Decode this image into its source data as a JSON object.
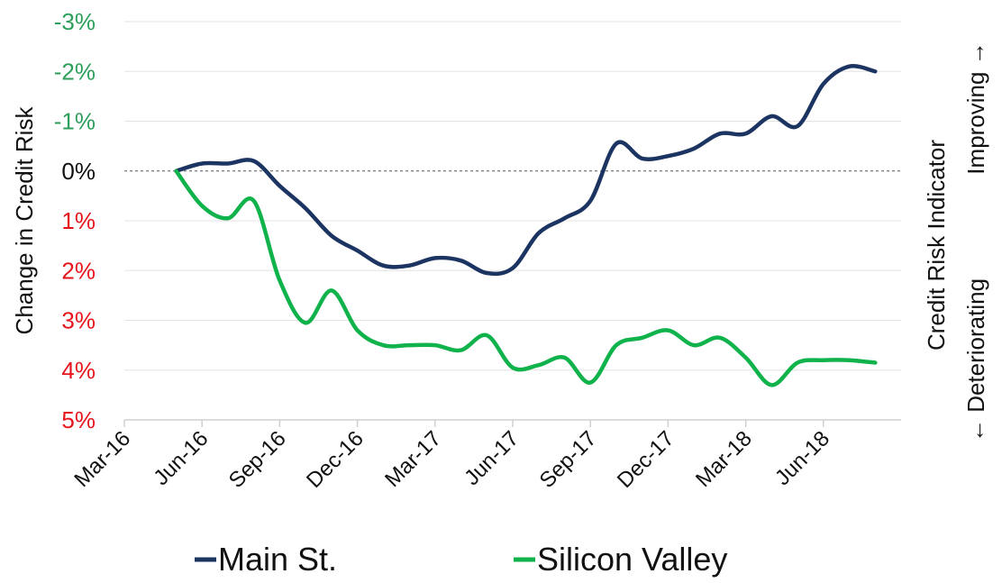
{
  "chart_data": {
    "type": "line",
    "ylabel": "Change in Credit Risk",
    "right_axis_title": "Credit Risk Indicator",
    "right_axis_improving": "Improving →",
    "right_axis_deteriorating": "← Deteriorating",
    "ylim": [
      5,
      -3
    ],
    "y_inverted": true,
    "y_ticks": [
      {
        "value": -3,
        "label": "-3%",
        "color": "#2e9e5b"
      },
      {
        "value": -2,
        "label": "-2%",
        "color": "#2e9e5b"
      },
      {
        "value": -1,
        "label": "-1%",
        "color": "#2e9e5b"
      },
      {
        "value": 0,
        "label": "0%",
        "color": "#111111"
      },
      {
        "value": 1,
        "label": "1%",
        "color": "#e8141c"
      },
      {
        "value": 2,
        "label": "2%",
        "color": "#e8141c"
      },
      {
        "value": 3,
        "label": "3%",
        "color": "#e8141c"
      },
      {
        "value": 4,
        "label": "4%",
        "color": "#e8141c"
      },
      {
        "value": 5,
        "label": "5%",
        "color": "#e8141c"
      }
    ],
    "x_ticks": [
      "Mar-16",
      "Jun-16",
      "Sep-16",
      "Dec-16",
      "Mar-17",
      "Jun-17",
      "Sep-17",
      "Dec-17",
      "Mar-18",
      "Jun-18"
    ],
    "x_range": [
      "2016-03",
      "2018-09"
    ],
    "grid": true,
    "zero_line": "dashed",
    "legend_position": "bottom",
    "series": [
      {
        "name": "Main St.",
        "color": "#1b3461",
        "points": [
          [
            "2016-05",
            0.0
          ],
          [
            "2016-06",
            -0.15
          ],
          [
            "2016-07",
            -0.15
          ],
          [
            "2016-08",
            -0.2
          ],
          [
            "2016-09",
            0.3
          ],
          [
            "2016-10",
            0.75
          ],
          [
            "2016-11",
            1.3
          ],
          [
            "2016-12",
            1.6
          ],
          [
            "2017-01",
            1.9
          ],
          [
            "2017-02",
            1.9
          ],
          [
            "2017-03",
            1.75
          ],
          [
            "2017-04",
            1.8
          ],
          [
            "2017-05",
            2.05
          ],
          [
            "2017-06",
            1.95
          ],
          [
            "2017-07",
            1.25
          ],
          [
            "2017-08",
            0.95
          ],
          [
            "2017-09",
            0.6
          ],
          [
            "2017-10",
            -0.55
          ],
          [
            "2017-11",
            -0.25
          ],
          [
            "2017-12",
            -0.3
          ],
          [
            "2018-01",
            -0.45
          ],
          [
            "2018-02",
            -0.75
          ],
          [
            "2018-03",
            -0.75
          ],
          [
            "2018-04",
            -1.1
          ],
          [
            "2018-05",
            -0.9
          ],
          [
            "2018-06",
            -1.75
          ],
          [
            "2018-07",
            -2.1
          ],
          [
            "2018-08",
            -2.0
          ]
        ]
      },
      {
        "name": "Silicon Valley",
        "color": "#10b24b",
        "points": [
          [
            "2016-05",
            0.0
          ],
          [
            "2016-06",
            0.7
          ],
          [
            "2016-07",
            0.95
          ],
          [
            "2016-08",
            0.6
          ],
          [
            "2016-09",
            2.2
          ],
          [
            "2016-10",
            3.05
          ],
          [
            "2016-11",
            2.4
          ],
          [
            "2016-12",
            3.2
          ],
          [
            "2017-01",
            3.5
          ],
          [
            "2017-02",
            3.5
          ],
          [
            "2017-03",
            3.5
          ],
          [
            "2017-04",
            3.6
          ],
          [
            "2017-05",
            3.3
          ],
          [
            "2017-06",
            3.95
          ],
          [
            "2017-07",
            3.9
          ],
          [
            "2017-08",
            3.75
          ],
          [
            "2017-09",
            4.25
          ],
          [
            "2017-10",
            3.5
          ],
          [
            "2017-11",
            3.35
          ],
          [
            "2017-12",
            3.2
          ],
          [
            "2018-01",
            3.5
          ],
          [
            "2018-02",
            3.35
          ],
          [
            "2018-03",
            3.75
          ],
          [
            "2018-04",
            4.3
          ],
          [
            "2018-05",
            3.85
          ],
          [
            "2018-06",
            3.8
          ],
          [
            "2018-07",
            3.8
          ],
          [
            "2018-08",
            3.85
          ]
        ]
      }
    ]
  }
}
